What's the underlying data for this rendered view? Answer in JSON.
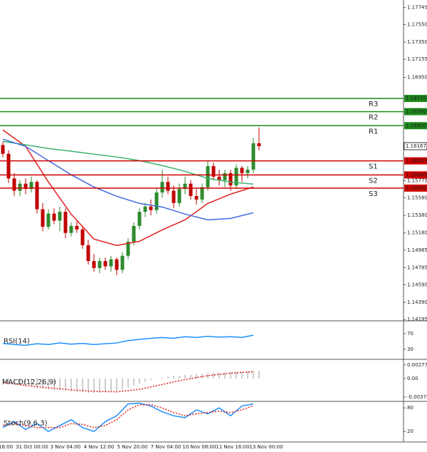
{
  "chart_data": [
    {
      "type": "candlestick",
      "bull_color": "#2e8b2e",
      "bear_color": "#c00000",
      "ylim": [
        1.1418,
        1.1783
      ],
      "yticks": [
        1.17745,
        {
          "value": 1.1755,
          "label": "1.17550"
        },
        {
          "value": 1.1735,
          "label": "1.17350"
        },
        1.17155,
        {
          "value": 1.1695,
          "label": "1.16950"
        },
        1.15775,
        {
          "value": 1.1558,
          "label": "1.15580"
        },
        {
          "value": 1.1538,
          "label": "1.15380"
        },
        {
          "value": 1.1518,
          "label": "1.15180"
        },
        1.14985,
        1.14785,
        {
          "value": 1.1459,
          "label": "1.14590"
        },
        {
          "value": 1.1439,
          "label": "1.14390"
        },
        1.14195
      ],
      "ohlc": [
        [
          1.1618,
          1.1622,
          1.1604,
          1.1608
        ],
        [
          1.1608,
          1.1612,
          1.1575,
          1.158
        ],
        [
          1.158,
          1.1586,
          1.156,
          1.1566
        ],
        [
          1.1566,
          1.1578,
          1.156,
          1.1574
        ],
        [
          1.1574,
          1.158,
          1.1562,
          1.1568
        ],
        [
          1.1568,
          1.1582,
          1.1564,
          1.1576
        ],
        [
          1.1576,
          1.1578,
          1.154,
          1.1545
        ],
        [
          1.1545,
          1.1552,
          1.152,
          1.1525
        ],
        [
          1.1525,
          1.1545,
          1.1522,
          1.154
        ],
        [
          1.154,
          1.1546,
          1.1528,
          1.1532
        ],
        [
          1.1532,
          1.1548,
          1.152,
          1.1542
        ],
        [
          1.1542,
          1.1546,
          1.1512,
          1.1518
        ],
        [
          1.1518,
          1.153,
          1.1514,
          1.1526
        ],
        [
          1.1526,
          1.1532,
          1.1518,
          1.1522
        ],
        [
          1.1522,
          1.1526,
          1.15,
          1.1504
        ],
        [
          1.1504,
          1.151,
          1.1482,
          1.1486
        ],
        [
          1.1486,
          1.1494,
          1.1474,
          1.1478
        ],
        [
          1.1478,
          1.149,
          1.1472,
          1.1486
        ],
        [
          1.1486,
          1.149,
          1.1476,
          1.148
        ],
        [
          1.148,
          1.1492,
          1.1474,
          1.1488
        ],
        [
          1.1488,
          1.149,
          1.147,
          1.1476
        ],
        [
          1.1476,
          1.1496,
          1.1472,
          1.1492
        ],
        [
          1.1492,
          1.1512,
          1.1488,
          1.1508
        ],
        [
          1.1508,
          1.153,
          1.1504,
          1.1526
        ],
        [
          1.1526,
          1.1546,
          1.1522,
          1.1542
        ],
        [
          1.1542,
          1.1552,
          1.1536,
          1.1548
        ],
        [
          1.1548,
          1.1556,
          1.1538,
          1.1544
        ],
        [
          1.1544,
          1.1568,
          1.154,
          1.1564
        ],
        [
          1.1564,
          1.159,
          1.1558,
          1.1576
        ],
        [
          1.1576,
          1.1582,
          1.1562,
          1.1566
        ],
        [
          1.1566,
          1.1572,
          1.1546,
          1.1552
        ],
        [
          1.1552,
          1.1574,
          1.1548,
          1.1568
        ],
        [
          1.1568,
          1.1582,
          1.1562,
          1.1574
        ],
        [
          1.1574,
          1.1578,
          1.1556,
          1.156
        ],
        [
          1.156,
          1.1568,
          1.155,
          1.1556
        ],
        [
          1.1556,
          1.1574,
          1.1552,
          1.157
        ],
        [
          1.157,
          1.16,
          1.1566,
          1.1594
        ],
        [
          1.1594,
          1.1598,
          1.1578,
          1.1582
        ],
        [
          1.1582,
          1.159,
          1.1572,
          1.1578
        ],
        [
          1.1578,
          1.159,
          1.157,
          1.1586
        ],
        [
          1.1586,
          1.159,
          1.1566,
          1.1572
        ],
        [
          1.1572,
          1.1596,
          1.1568,
          1.1592
        ],
        [
          1.1592,
          1.1594,
          1.1576,
          1.1586
        ],
        [
          1.1586,
          1.1594,
          1.158,
          1.159
        ],
        [
          1.159,
          1.1626,
          1.1586,
          1.162
        ],
        [
          1.162,
          1.1638,
          1.1612,
          1.16167
        ]
      ],
      "line_x": [
        0,
        4,
        8,
        12,
        16,
        20,
        24,
        28,
        32,
        36,
        40,
        44
      ],
      "lines": [
        {
          "color": "#e02020",
          "values": [
            1.16352,
            1.16165,
            1.15759,
            1.15394,
            1.1511,
            1.15037,
            1.15085,
            1.15215,
            1.15329,
            1.15516,
            1.15621,
            1.15703
          ]
        },
        {
          "color": "#3cb371",
          "values": [
            1.16222,
            1.16182,
            1.16141,
            1.16109,
            1.16076,
            1.16044,
            1.16003,
            1.15946,
            1.15881,
            1.158,
            1.15759,
            1.15735
          ]
        },
        {
          "color": "#4169e1",
          "values": [
            1.16247,
            1.16165,
            1.16003,
            1.15841,
            1.15703,
            1.15597,
            1.15516,
            1.15475,
            1.15394,
            1.15329,
            1.15345,
            1.1541
          ]
        }
      ],
      "levels": [
        {
          "name": "R3",
          "value": 1.1671,
          "value_label": "1.16710",
          "color": "#1a8a1a"
        },
        {
          "name": "R2",
          "value": 1.1656,
          "value_label": "1.16560",
          "color": "#1a8a1a"
        },
        {
          "name": "R1",
          "value": 1.164,
          "value_label": "1.16400",
          "color": "#1a8a1a"
        },
        {
          "name": "S1",
          "value": 1.16,
          "value_label": "1.16000",
          "color": "#d00000"
        },
        {
          "name": "S2",
          "value": 1.1584,
          "value_label": "1.15840",
          "color": "#d00000"
        },
        {
          "name": "S3",
          "value": 1.1569,
          "value_label": "1.15690",
          "color": "#d00000"
        }
      ],
      "last_price": 1.16167,
      "x_labels": [
        "16:00",
        "31 Oct 00:00",
        "3 Nov 04:00",
        "4 Nov 12:00",
        "5 Nov 20:00",
        "7 Nov 04:00",
        "10 Nov 08:00",
        "11 Nov 16:00",
        "13 Nov 00:00"
      ]
    },
    {
      "type": "line",
      "title": "RSI(14)",
      "ylim": [
        6,
        99
      ],
      "yticks": [
        70,
        30
      ],
      "x": [
        0,
        2,
        4,
        6,
        8,
        10,
        12,
        14,
        16,
        18,
        20,
        22,
        24,
        26,
        28,
        30,
        32,
        34,
        36,
        38,
        40,
        42,
        44
      ],
      "series": [
        {
          "color": "#1e90ff",
          "values": [
            45,
            42,
            40,
            44,
            42,
            46,
            43,
            45,
            42,
            44,
            46,
            52,
            55,
            58,
            60,
            58,
            62,
            60,
            63,
            61,
            62,
            60,
            66
          ]
        }
      ]
    },
    {
      "type": "macd",
      "title": "MACD(12,26,9)",
      "ylim": [
        -0.0045,
        0.003625
      ],
      "yticks": [
        0.002772,
        {
          "value": 0,
          "label": "0.00"
        },
        -0.003753
      ],
      "color": "#999999",
      "values": [
        -0.0005,
        -0.0008,
        -0.0011,
        -0.0013,
        -0.0015,
        -0.0017,
        -0.0019,
        -0.0021,
        -0.0022,
        -0.0023,
        -0.0024,
        -0.0025,
        -0.0026,
        -0.0027,
        -0.0028,
        -0.0029,
        -0.0029,
        -0.0029,
        -0.0028,
        -0.0027,
        -0.0025,
        -0.0022,
        -0.0018,
        -0.0014,
        -0.001,
        -0.0006,
        -0.0003,
        0,
        0.0002,
        0.0004,
        0.0005,
        0.0006,
        0.0007,
        0.0008,
        0.0009,
        0.001,
        0.0011,
        0.0012,
        0.0012,
        0.0013,
        0.0013,
        0.0014,
        0.0014,
        0.0015,
        0.0015,
        0.0016
      ],
      "signal": {
        "color": "#e02020",
        "x": [
          0,
          4,
          8,
          12,
          16,
          20,
          24,
          28,
          32,
          36,
          40,
          44
        ],
        "values": [
          -0.0008,
          -0.0014,
          -0.0019,
          -0.0023,
          -0.0026,
          -0.0027,
          -0.0022,
          -0.0012,
          -0.0002,
          0.0006,
          0.0011,
          0.0014
        ]
      }
    },
    {
      "type": "line",
      "title": "Stoch(9,6,3)",
      "ylim": [
        -7,
        93
      ],
      "yticks": [
        80,
        20
      ],
      "x": [
        0,
        2,
        4,
        6,
        8,
        10,
        12,
        14,
        16,
        18,
        20,
        22,
        24,
        26,
        28,
        30,
        32,
        34,
        36,
        38,
        40,
        42,
        44
      ],
      "series": [
        {
          "color": "#1e90ff",
          "values": [
            30,
            45,
            25,
            40,
            20,
            35,
            50,
            30,
            20,
            45,
            60,
            90,
            92,
            85,
            70,
            60,
            55,
            75,
            65,
            80,
            60,
            85,
            90
          ]
        },
        {
          "color": "#e02020",
          "dashed": true,
          "values": [
            35,
            40,
            35,
            30,
            30,
            30,
            40,
            38,
            30,
            35,
            50,
            75,
            88,
            88,
            80,
            68,
            60,
            65,
            68,
            72,
            68,
            75,
            86
          ]
        }
      ]
    }
  ]
}
